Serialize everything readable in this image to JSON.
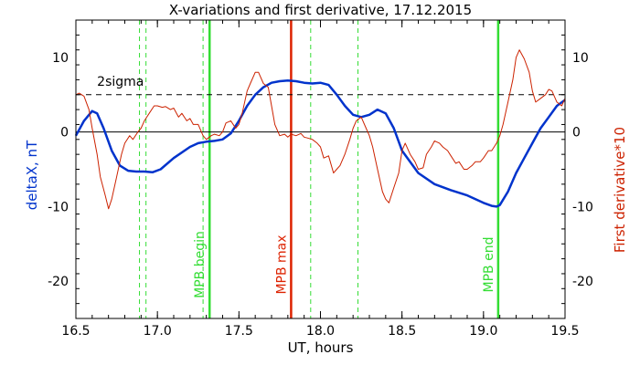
{
  "chart_data": {
    "type": "line",
    "title": "X-variations and first derivative, 17.12.2015",
    "xlabel": "UT, hours",
    "ylabel_left": "deltaX, nT",
    "ylabel_right": "First derivative*10",
    "xlim": [
      16.5,
      19.5
    ],
    "ylim": [
      -25,
      15
    ],
    "xticks": [
      "16.5",
      "17.0",
      "17.5",
      "18.0",
      "18.5",
      "19.0",
      "19.5"
    ],
    "yticks_left": [
      "-20",
      "-10",
      "0",
      "10"
    ],
    "yticks_right": [
      "-20",
      "-10",
      "0",
      "10"
    ],
    "threshold": {
      "value": 5,
      "label": "2sigma"
    },
    "zero_line": 0,
    "colors": {
      "deltax": "#0033cc",
      "derivative": "#cc2200",
      "mpb": "#33dd33",
      "mpb_max": "#dd2200",
      "axis": "#000000"
    },
    "series": [
      {
        "name": "deltaX, nT",
        "axis": "left",
        "x": [
          16.5,
          16.55,
          16.6,
          16.63,
          16.67,
          16.72,
          16.77,
          16.82,
          16.87,
          16.92,
          16.97,
          17.02,
          17.1,
          17.2,
          17.25,
          17.3,
          17.35,
          17.4,
          17.45,
          17.5,
          17.55,
          17.6,
          17.65,
          17.7,
          17.75,
          17.8,
          17.85,
          17.9,
          17.95,
          18.0,
          18.05,
          18.1,
          18.15,
          18.2,
          18.25,
          18.3,
          18.35,
          18.4,
          18.45,
          18.5,
          18.6,
          18.7,
          18.8,
          18.9,
          19.0,
          19.05,
          19.08,
          19.1,
          19.15,
          19.2,
          19.25,
          19.3,
          19.35,
          19.4,
          19.45,
          19.5
        ],
        "y": [
          -0.5,
          1.5,
          2.8,
          2.5,
          0.5,
          -2.5,
          -4.5,
          -5.2,
          -5.3,
          -5.3,
          -5.4,
          -5.0,
          -3.5,
          -2.0,
          -1.5,
          -1.3,
          -1.2,
          -1.0,
          -0.2,
          1.5,
          3.5,
          5.0,
          6.0,
          6.6,
          6.8,
          6.9,
          6.8,
          6.6,
          6.5,
          6.6,
          6.3,
          5.0,
          3.5,
          2.3,
          2.0,
          2.3,
          3.0,
          2.5,
          0.5,
          -2.5,
          -5.5,
          -7.0,
          -7.8,
          -8.5,
          -9.5,
          -9.9,
          -10.0,
          -9.8,
          -8.0,
          -5.5,
          -3.5,
          -1.5,
          0.5,
          2.0,
          3.5,
          4.3
        ]
      },
      {
        "name": "First derivative*10",
        "axis": "right",
        "x": [
          16.5,
          16.52,
          16.55,
          16.58,
          16.6,
          16.63,
          16.65,
          16.68,
          16.7,
          16.72,
          16.75,
          16.78,
          16.8,
          16.83,
          16.85,
          16.88,
          16.9,
          16.92,
          16.95,
          16.98,
          17.0,
          17.03,
          17.05,
          17.08,
          17.1,
          17.13,
          17.15,
          17.18,
          17.2,
          17.22,
          17.25,
          17.28,
          17.3,
          17.33,
          17.35,
          17.38,
          17.4,
          17.42,
          17.45,
          17.48,
          17.5,
          17.52,
          17.55,
          17.57,
          17.6,
          17.62,
          17.65,
          17.68,
          17.7,
          17.72,
          17.75,
          17.78,
          17.8,
          17.82,
          17.85,
          17.88,
          17.9,
          17.92,
          17.95,
          17.98,
          18.0,
          18.02,
          18.05,
          18.08,
          18.1,
          18.12,
          18.15,
          18.18,
          18.2,
          18.22,
          18.25,
          18.28,
          18.3,
          18.32,
          18.35,
          18.38,
          18.4,
          18.42,
          18.45,
          18.48,
          18.5,
          18.52,
          18.55,
          18.58,
          18.6,
          18.63,
          18.65,
          18.68,
          18.7,
          18.73,
          18.75,
          18.78,
          18.8,
          18.83,
          18.85,
          18.88,
          18.9,
          18.93,
          18.95,
          18.98,
          19.0,
          19.03,
          19.05,
          19.08,
          19.1,
          19.12,
          19.15,
          19.18,
          19.2,
          19.22,
          19.25,
          19.28,
          19.3,
          19.32,
          19.35,
          19.38,
          19.4,
          19.42,
          19.45,
          19.48,
          19.5
        ],
        "y": [
          5.0,
          5.2,
          4.8,
          3.0,
          0.5,
          -3.0,
          -6.0,
          -8.5,
          -10.3,
          -9.0,
          -6.0,
          -3.0,
          -1.5,
          -0.5,
          -1.0,
          0.0,
          0.5,
          1.5,
          2.5,
          3.5,
          3.5,
          3.3,
          3.4,
          3.0,
          3.2,
          2.0,
          2.5,
          1.5,
          1.8,
          1.0,
          1.0,
          -0.5,
          -1.0,
          -0.5,
          -0.3,
          -0.5,
          0.0,
          1.2,
          1.5,
          0.5,
          1.0,
          2.5,
          5.5,
          6.5,
          8.0,
          8.0,
          6.5,
          6.0,
          3.5,
          1.0,
          -0.5,
          -0.3,
          -0.7,
          -0.3,
          -0.5,
          -0.2,
          -0.7,
          -0.8,
          -1.0,
          -1.5,
          -2.0,
          -3.5,
          -3.2,
          -5.5,
          -5.0,
          -4.5,
          -3.0,
          -1.0,
          0.5,
          1.5,
          2.0,
          0.5,
          -0.5,
          -2.0,
          -5.0,
          -8.0,
          -9.0,
          -9.5,
          -7.5,
          -5.5,
          -2.5,
          -1.5,
          -3.0,
          -4.0,
          -5.0,
          -4.8,
          -3.0,
          -2.0,
          -1.2,
          -1.5,
          -2.0,
          -2.5,
          -3.2,
          -4.2,
          -4.0,
          -5.0,
          -5.0,
          -4.5,
          -4.0,
          -4.0,
          -3.5,
          -2.5,
          -2.5,
          -1.5,
          -0.5,
          1.0,
          4.0,
          7.0,
          10.0,
          11.0,
          9.8,
          8.0,
          5.5,
          4.0,
          4.5,
          5.0,
          5.7,
          5.5,
          4.0,
          3.5,
          4.5
        ]
      }
    ],
    "markers": [
      {
        "x": 17.32,
        "kind": "solid",
        "color": "green",
        "label": "MPB begin"
      },
      {
        "x": 17.82,
        "kind": "solid",
        "color": "red",
        "label": "MPB max"
      },
      {
        "x": 19.09,
        "kind": "solid",
        "color": "green",
        "label": "MPB end"
      },
      {
        "x": 16.89,
        "kind": "dashed",
        "color": "green",
        "label": ""
      },
      {
        "x": 16.93,
        "kind": "dashed",
        "color": "green",
        "label": ""
      },
      {
        "x": 17.28,
        "kind": "dashed",
        "color": "green",
        "label": ""
      },
      {
        "x": 17.94,
        "kind": "dashed",
        "color": "green",
        "label": ""
      },
      {
        "x": 18.23,
        "kind": "dashed",
        "color": "green",
        "label": ""
      }
    ]
  }
}
